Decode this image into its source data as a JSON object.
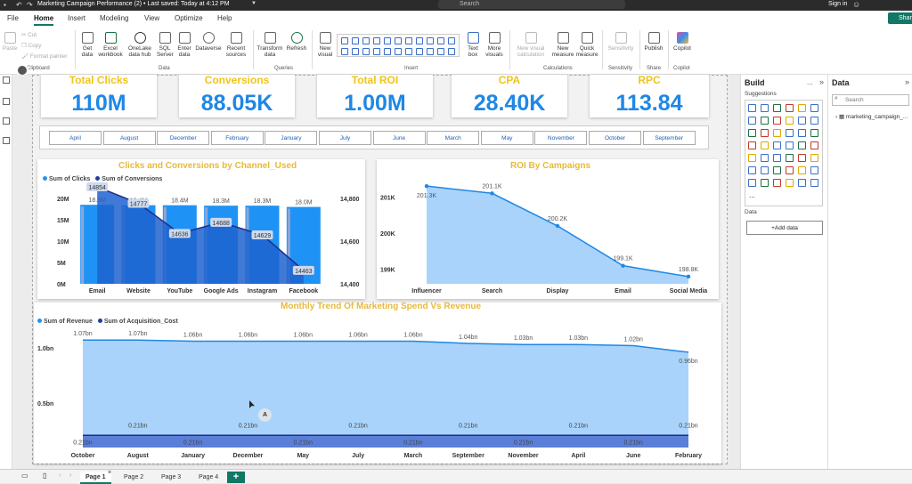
{
  "titlebar": {
    "title": "Marketing Campaign Performance (2) • Last saved: Today at 4:12 PM",
    "search": "Search",
    "signin": "Sign in"
  },
  "menu": {
    "items": [
      "File",
      "Home",
      "Insert",
      "Modeling",
      "View",
      "Optimize",
      "Help"
    ],
    "active": "Home",
    "share": "Share"
  },
  "ribbon": {
    "clipboard": {
      "paste": "Paste",
      "cut": "Cut",
      "copy": "Copy",
      "format_painter": "Format painter",
      "group": "Clipboard"
    },
    "data": {
      "get_data": "Get data",
      "excel": "Excel workbook",
      "onelake": "OneLake data hub",
      "sql": "SQL Server",
      "enter": "Enter data",
      "dataverse": "Dataverse",
      "recent": "Recent sources",
      "group": "Data"
    },
    "queries": {
      "transform": "Transform data",
      "refresh": "Refresh",
      "group": "Queries"
    },
    "insert": {
      "new_visual": "New visual",
      "text_box": "Text box",
      "more_visuals": "More visuals",
      "group": "Insert"
    },
    "calculations": {
      "new_visual_calc": "New visual calculation",
      "new_measure": "New measure",
      "quick_measure": "Quick measure",
      "group": "Calculations"
    },
    "sensitivity": {
      "label": "Sensitivity",
      "group": "Sensitivity"
    },
    "share": {
      "publish": "Publish",
      "group": "Share"
    },
    "copilot": {
      "label": "Copilot",
      "group": "Copilot"
    }
  },
  "kpis": [
    {
      "label": "Total Clicks",
      "value": "110M"
    },
    {
      "label": "Conversions",
      "value": "88.05K"
    },
    {
      "label": "Total ROI",
      "value": "1.00M"
    },
    {
      "label": "CPA",
      "value": "28.40K"
    },
    {
      "label": "RPC",
      "value": "113.84"
    }
  ],
  "months": [
    "April",
    "August",
    "December",
    "February",
    "January",
    "July",
    "June",
    "March",
    "May",
    "November",
    "October",
    "September"
  ],
  "chart_data": [
    {
      "type": "bar",
      "title": "Clicks and Conversions by Channel_Used",
      "categories": [
        "Email",
        "Website",
        "YouTube",
        "Google Ads",
        "Instagram",
        "Facebook"
      ],
      "series": [
        {
          "name": "Sum of Clicks",
          "values": [
            18500000,
            18400000,
            18400000,
            18300000,
            18300000,
            18000000
          ],
          "labels": [
            "18.5M",
            "18.4M",
            "18.4M",
            "18.3M",
            "18.3M",
            "18.0M"
          ]
        },
        {
          "name": "Sum of Conversions",
          "values": [
            14854,
            14777,
            14636,
            14688,
            14629,
            14463
          ],
          "labels": [
            "14854",
            "14777",
            "14636",
            "14688",
            "14629",
            "14463"
          ],
          "type": "line"
        }
      ],
      "y_ticks": [
        "0M",
        "5M",
        "10M",
        "15M",
        "20M"
      ],
      "y2_ticks": [
        "14,400",
        "14,600",
        "14,800"
      ],
      "ylim": [
        0,
        20000000
      ],
      "y2lim": [
        14400,
        14800
      ]
    },
    {
      "type": "area",
      "title": "ROI By Campaigns",
      "categories": [
        "Influencer",
        "Search",
        "Display",
        "Email",
        "Social Media"
      ],
      "values": [
        201300,
        201100,
        200200,
        199100,
        198800
      ],
      "labels": [
        "201.3K",
        "201.1K",
        "200.2K",
        "199.1K",
        "198.8K"
      ],
      "y_ticks": [
        "199K",
        "200K",
        "201K"
      ],
      "ylim": [
        198600,
        201500
      ]
    },
    {
      "type": "area",
      "title": "Monthly Trend Of Marketing Spend Vs Revenue",
      "categories": [
        "October",
        "August",
        "January",
        "December",
        "May",
        "July",
        "March",
        "September",
        "November",
        "April",
        "June",
        "February"
      ],
      "series": [
        {
          "name": "Sum of Revenue",
          "values": [
            1.07,
            1.07,
            1.06,
            1.06,
            1.06,
            1.06,
            1.06,
            1.04,
            1.03,
            1.03,
            1.02,
            0.96
          ],
          "labels": [
            "1.07bn",
            "1.07bn",
            "1.06bn",
            "1.06bn",
            "1.06bn",
            "1.06bn",
            "1.06bn",
            "1.04bn",
            "1.03bn",
            "1.03bn",
            "1.02bn",
            "0.96bn"
          ]
        },
        {
          "name": "Sum of Acquisition_Cost",
          "values": [
            0.21,
            0.21,
            0.21,
            0.21,
            0.21,
            0.21,
            0.21,
            0.21,
            0.21,
            0.21,
            0.21,
            0.21
          ],
          "labels": [
            "0.21bn",
            "0.21bn",
            "0.21bn",
            "0.21bn",
            "0.21bn",
            "0.21bn",
            "0.21bn",
            "0.21bn",
            "0.21bn",
            "0.21bn",
            "0.21bn",
            "0.21bn"
          ]
        }
      ],
      "y_ticks": [
        "0.5bn",
        "1.0bn"
      ],
      "ylim": [
        0.1,
        1.12
      ]
    }
  ],
  "cursor_badge": "A",
  "build_pane": {
    "title": "Build",
    "suggestions": "Suggestions",
    "data_label": "Data",
    "add_data": "+Add data",
    "more": "..."
  },
  "data_pane": {
    "title": "Data",
    "search_placeholder": "Search",
    "table": "marketing_campaign_..."
  },
  "pages": [
    "Page 1",
    "Page 2",
    "Page 3",
    "Page 4"
  ],
  "colors": {
    "accent": "#117865",
    "kpi_value": "#1f87e5",
    "title_gold": "#e8b93a",
    "bar_light": "#1f93f5",
    "bar_dark": "#1e63cf",
    "area": "#a9d3fa",
    "line": "#1f87e5",
    "dark_area": "#5b7fd8"
  }
}
